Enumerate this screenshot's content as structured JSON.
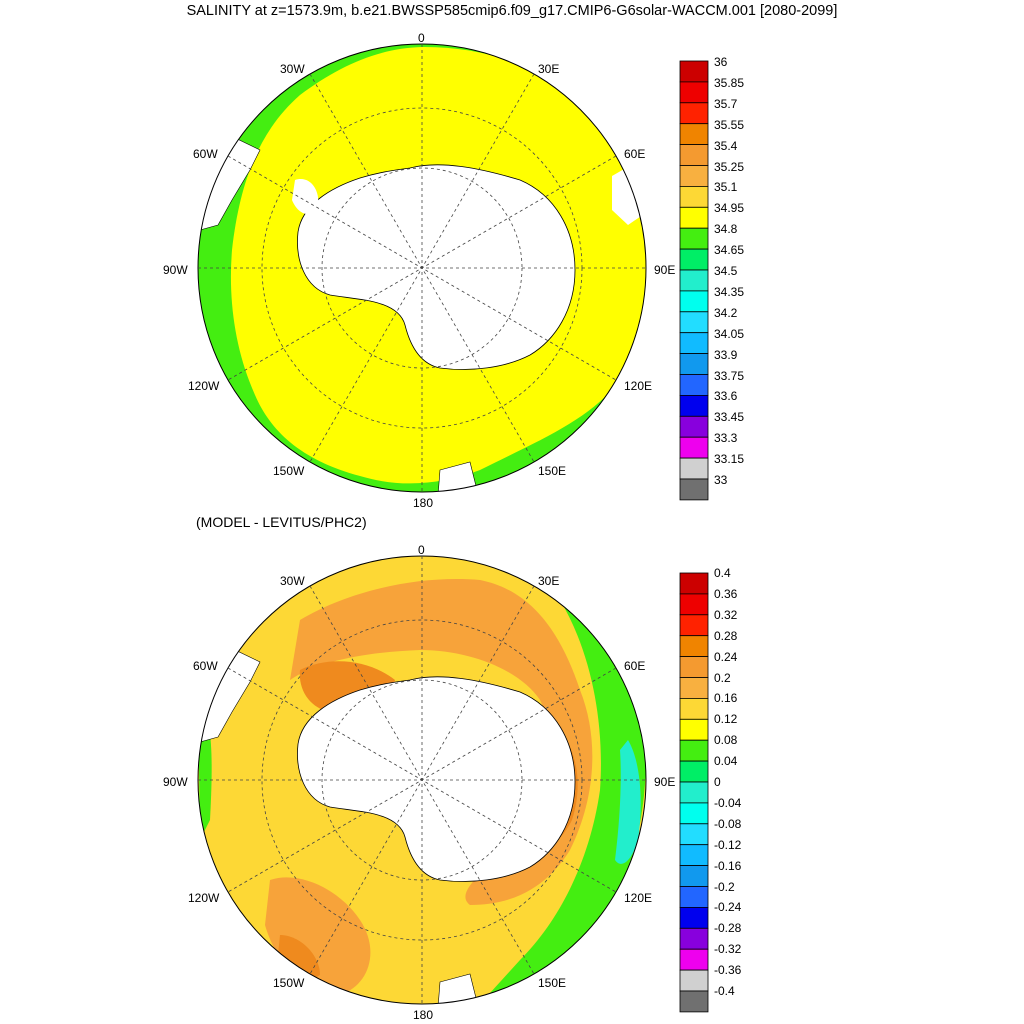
{
  "title": "SALINITY at z=1573.9m, b.e21.BWSSP585cmip6.f09_g17.CMIP6-G6solar-WACCM.001 [2080-2099]",
  "subtitle": "(MODEL - LEVITUS/PHC2)",
  "lon_labels": [
    "0",
    "30E",
    "60E",
    "90E",
    "120E",
    "150E",
    "180",
    "150W",
    "120W",
    "90W",
    "60W",
    "30W"
  ],
  "colors": {
    "land": "#ffffff",
    "coast": "#000000",
    "fill_main_top": "#ffff00",
    "fill_ring_top": "#44ee11",
    "fill_main_bottom": "#fdd835",
    "fill_orange": "#f7a33a",
    "fill_dark_orange": "#ef8a1e",
    "fill_green": "#44ee11",
    "fill_cyan": "#22eecc"
  },
  "colorbars": [
    {
      "labels": [
        "36",
        "35.85",
        "35.7",
        "35.55",
        "35.4",
        "35.25",
        "35.1",
        "34.95",
        "34.8",
        "34.65",
        "34.5",
        "34.35",
        "34.2",
        "34.05",
        "33.9",
        "33.75",
        "33.6",
        "33.45",
        "33.3",
        "33.15",
        "33"
      ],
      "colors": [
        "#cc0000",
        "#ee0000",
        "#ff2200",
        "#f08400",
        "#f49a30",
        "#f8b040",
        "#fdd835",
        "#ffff00",
        "#44ee11",
        "#00ee66",
        "#22eecc",
        "#00ffee",
        "#22ddff",
        "#11bbff",
        "#1199ee",
        "#2266ff",
        "#0000ee",
        "#8800dd",
        "#ee00ee",
        "#d0d0d0",
        "#707070"
      ]
    },
    {
      "labels": [
        "0.4",
        "0.36",
        "0.32",
        "0.28",
        "0.24",
        "0.2",
        "0.16",
        "0.12",
        "0.08",
        "0.04",
        "0",
        "-0.04",
        "-0.08",
        "-0.12",
        "-0.16",
        "-0.2",
        "-0.24",
        "-0.28",
        "-0.32",
        "-0.36",
        "-0.4"
      ],
      "colors": [
        "#cc0000",
        "#ee0000",
        "#ff2200",
        "#f08400",
        "#f49a30",
        "#f8b040",
        "#fdd835",
        "#ffff00",
        "#44ee11",
        "#00ee66",
        "#22eecc",
        "#00ffee",
        "#22ddff",
        "#11bbff",
        "#1199ee",
        "#2266ff",
        "#0000ee",
        "#8800dd",
        "#ee00ee",
        "#d0d0d0",
        "#707070"
      ]
    }
  ]
}
